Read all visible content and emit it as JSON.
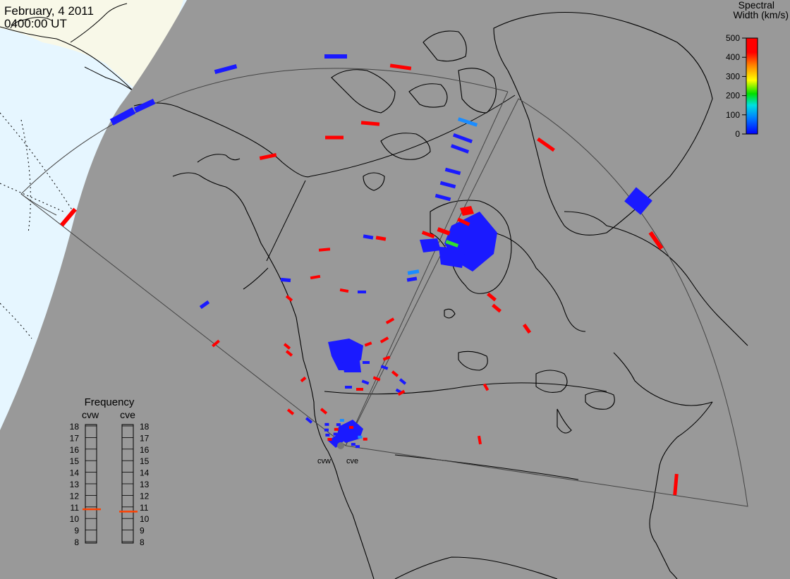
{
  "header": {
    "date": "February, 4 2011",
    "time": "0400:00 UT"
  },
  "colorbar": {
    "title_line1": "Spectral",
    "title_line2": "Width (km/s)",
    "ticks": [
      "500",
      "400",
      "300",
      "200",
      "100",
      "0"
    ],
    "colors": [
      "#0000ff",
      "#0080ff",
      "#00e0e0",
      "#00e000",
      "#ffff00",
      "#ff8000",
      "#ff0000"
    ]
  },
  "frequency_panel": {
    "title": "Frequency",
    "left_label": "cvw",
    "right_label": "cve",
    "ticks": [
      "18",
      "17",
      "16",
      "15",
      "14",
      "13",
      "12",
      "11",
      "10",
      "9",
      "8"
    ],
    "cvw_value": 10.8,
    "cve_value": 10.6,
    "indicator_color": "#ff4000"
  },
  "radar_labels": {
    "cvw": "cvw",
    "cve": "cve"
  },
  "colors": {
    "night": "#999999",
    "ocean_day": "#e6f6ff",
    "land_day": "#f8f8e8",
    "coast": "#000000"
  }
}
